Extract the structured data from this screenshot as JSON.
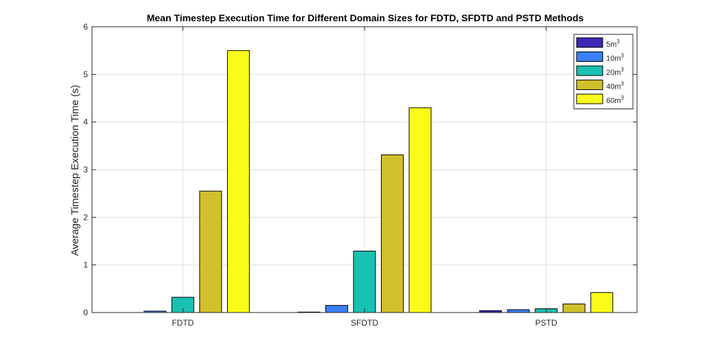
{
  "chart_data": {
    "type": "bar",
    "title": "Mean Timestep Execution Time for Different Domain Sizes for FDTD, SFDTD and PSTD Methods",
    "xlabel": "",
    "ylabel": "Average Timestep Execution Time (s)",
    "categories": [
      "FDTD",
      "SFDTD",
      "PSTD"
    ],
    "ylim": [
      0,
      6
    ],
    "yticks": [
      "0",
      "1",
      "2",
      "3",
      "4",
      "5",
      "6"
    ],
    "grid": true,
    "legend_position": "top-right",
    "series": [
      {
        "name": "5m",
        "sup": "3",
        "color": "#3b2bb5",
        "values": [
          0.0,
          0.01,
          0.04
        ]
      },
      {
        "name": "10m",
        "sup": "3",
        "color": "#3a7ff5",
        "values": [
          0.03,
          0.15,
          0.06
        ]
      },
      {
        "name": "20m",
        "sup": "3",
        "color": "#18c1b2",
        "values": [
          0.32,
          1.29,
          0.08
        ]
      },
      {
        "name": "40m",
        "sup": "3",
        "color": "#d2c02a",
        "values": [
          2.55,
          3.31,
          0.18
        ]
      },
      {
        "name": "60m",
        "sup": "3",
        "color": "#f9fb18",
        "values": [
          5.5,
          4.3,
          0.42
        ]
      }
    ]
  }
}
